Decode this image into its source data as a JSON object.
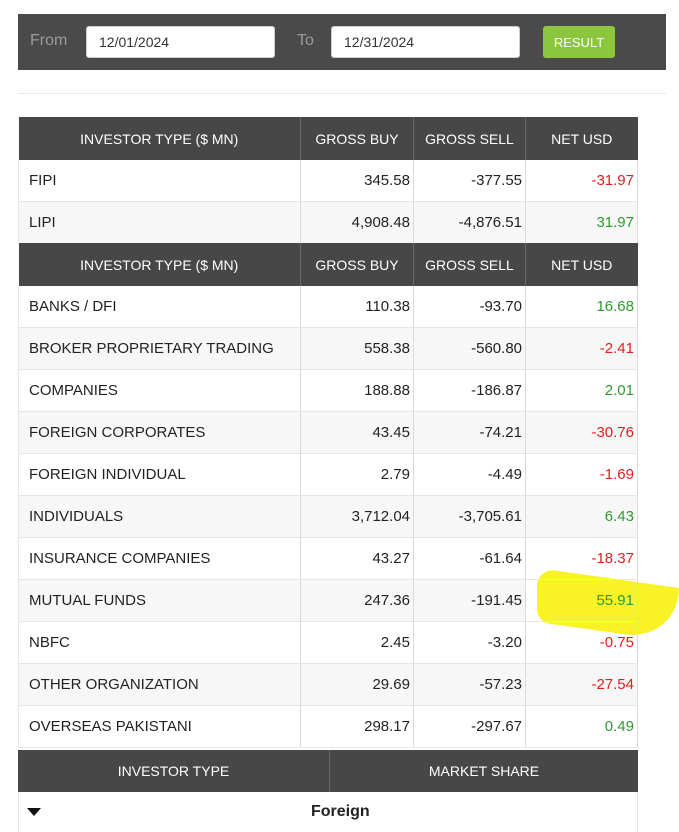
{
  "filter": {
    "from_label": "From",
    "from_value": "12/01/2024",
    "to_label": "To",
    "to_value": "12/31/2024",
    "result_label": "RESULT"
  },
  "table1": {
    "headers": [
      "INVESTOR TYPE ($ MN)",
      "GROSS BUY",
      "GROSS SELL",
      "NET USD"
    ],
    "rows": [
      {
        "type": "FIPI",
        "buy": "345.58",
        "sell": "-377.55",
        "net": "-31.97"
      },
      {
        "type": "LIPI",
        "buy": "4,908.48",
        "sell": "-4,876.51",
        "net": "31.97"
      }
    ]
  },
  "table2": {
    "headers": [
      "INVESTOR TYPE ($ MN)",
      "GROSS BUY",
      "GROSS SELL",
      "NET USD"
    ],
    "rows": [
      {
        "type": "BANKS / DFI",
        "buy": "110.38",
        "sell": "-93.70",
        "net": "16.68"
      },
      {
        "type": "BROKER PROPRIETARY TRADING",
        "buy": "558.38",
        "sell": "-560.80",
        "net": "-2.41"
      },
      {
        "type": "COMPANIES",
        "buy": "188.88",
        "sell": "-186.87",
        "net": "2.01"
      },
      {
        "type": "FOREIGN CORPORATES",
        "buy": "43.45",
        "sell": "-74.21",
        "net": "-30.76"
      },
      {
        "type": "FOREIGN INDIVIDUAL",
        "buy": "2.79",
        "sell": "-4.49",
        "net": "-1.69"
      },
      {
        "type": "INDIVIDUALS",
        "buy": "3,712.04",
        "sell": "-3,705.61",
        "net": "6.43"
      },
      {
        "type": "INSURANCE COMPANIES",
        "buy": "43.27",
        "sell": "-61.64",
        "net": "-18.37"
      },
      {
        "type": "MUTUAL FUNDS",
        "buy": "247.36",
        "sell": "-191.45",
        "net": "55.91"
      },
      {
        "type": "NBFC",
        "buy": "2.45",
        "sell": "-3.20",
        "net": "-0.75"
      },
      {
        "type": "OTHER ORGANIZATION",
        "buy": "29.69",
        "sell": "-57.23",
        "net": "-27.54"
      },
      {
        "type": "OVERSEAS PAKISTANI",
        "buy": "298.17",
        "sell": "-297.67",
        "net": "0.49"
      }
    ]
  },
  "share": {
    "headers": [
      "INVESTOR TYPE",
      "MARKET SHARE"
    ],
    "rows": [
      {
        "name": "Foreign"
      }
    ]
  },
  "colors": {
    "negative": "#e02020",
    "positive": "#2e9a2e",
    "highlight": "#f8f000",
    "accent": "#8cc63f"
  }
}
